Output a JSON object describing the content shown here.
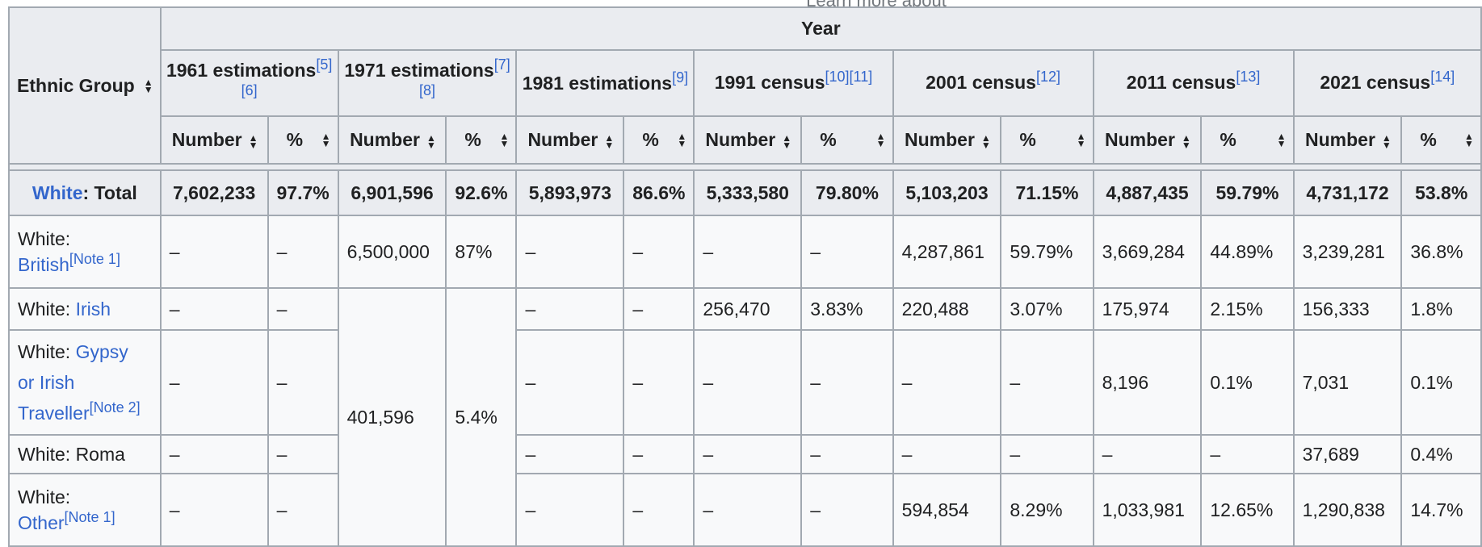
{
  "top_strip": "Learn more about",
  "headers": {
    "ethnic_group": "Ethnic Group",
    "year": "Year",
    "periods": [
      {
        "label": "1961 estimations",
        "refs": "[5][6]"
      },
      {
        "label": "1971 estimations",
        "refs": "[7][8]"
      },
      {
        "label": "1981 estimations",
        "refs": "[9]"
      },
      {
        "label": "1991 census",
        "refs": "[10][11]"
      },
      {
        "label": "2001 census",
        "refs": "[12]"
      },
      {
        "label": "2011 census",
        "refs": "[13]"
      },
      {
        "label": "2021 census",
        "refs": "[14]"
      }
    ],
    "number": "Number",
    "percent": "%"
  },
  "total": {
    "label_link": "White",
    "label_rest": ": Total",
    "values": [
      "7,602,233",
      "97.7%",
      "6,901,596",
      "92.6%",
      "5,893,973",
      "86.6%",
      "5,333,580",
      "79.80%",
      "5,103,203",
      "71.15%",
      "4,887,435",
      "59.79%",
      "4,731,172",
      "53.8%"
    ]
  },
  "rows": {
    "british": {
      "prefix": "White:",
      "link": "British",
      "note": "[Note 1]",
      "c1961": [
        "–",
        "–"
      ],
      "c1971": [
        "6,500,000",
        "87%"
      ],
      "c1981": [
        "–",
        "–"
      ],
      "c1991": [
        "–",
        "–"
      ],
      "c2001": [
        "4,287,861",
        "59.79%"
      ],
      "c2011": [
        "3,669,284",
        "44.89%"
      ],
      "c2021": [
        "3,239,281",
        "36.8%"
      ]
    },
    "irish": {
      "prefix": "White:",
      "link": "Irish",
      "note": "",
      "c1961": [
        "–",
        "–"
      ],
      "c1971_merged": [
        "401,596",
        "5.4%"
      ],
      "c1981": [
        "–",
        "–"
      ],
      "c1991": [
        "256,470",
        "3.83%"
      ],
      "c2001": [
        "220,488",
        "3.07%"
      ],
      "c2011": [
        "175,974",
        "2.15%"
      ],
      "c2021": [
        "156,333",
        "1.8%"
      ]
    },
    "gypsy": {
      "prefix": "White:",
      "link1": "Gypsy",
      "link2": "or Irish",
      "link3": "Traveller",
      "note": "[Note 2]",
      "c1961": [
        "–",
        "–"
      ],
      "c1981": [
        "–",
        "–"
      ],
      "c1991": [
        "–",
        "–"
      ],
      "c2001": [
        "–",
        "–"
      ],
      "c2011": [
        "8,196",
        "0.1%"
      ],
      "c2021": [
        "7,031",
        "0.1%"
      ]
    },
    "roma": {
      "label": "White: Roma",
      "c1961": [
        "–",
        "–"
      ],
      "c1981": [
        "–",
        "–"
      ],
      "c1991": [
        "–",
        "–"
      ],
      "c2001": [
        "–",
        "–"
      ],
      "c2011": [
        "–",
        "–"
      ],
      "c2021": [
        "37,689",
        "0.4%"
      ]
    },
    "other": {
      "prefix": "White:",
      "link": "Other",
      "note": "[Note 1]",
      "c1961": [
        "–",
        "–"
      ],
      "c1981": [
        "–",
        "–"
      ],
      "c1991": [
        "–",
        "–"
      ],
      "c2001": [
        "594,854",
        "8.29%"
      ],
      "c2011": [
        "1,033,981",
        "12.65%"
      ],
      "c2021": [
        "1,290,838",
        "14.7%"
      ]
    }
  },
  "icons": {
    "sort": "sort-arrows-icon"
  }
}
